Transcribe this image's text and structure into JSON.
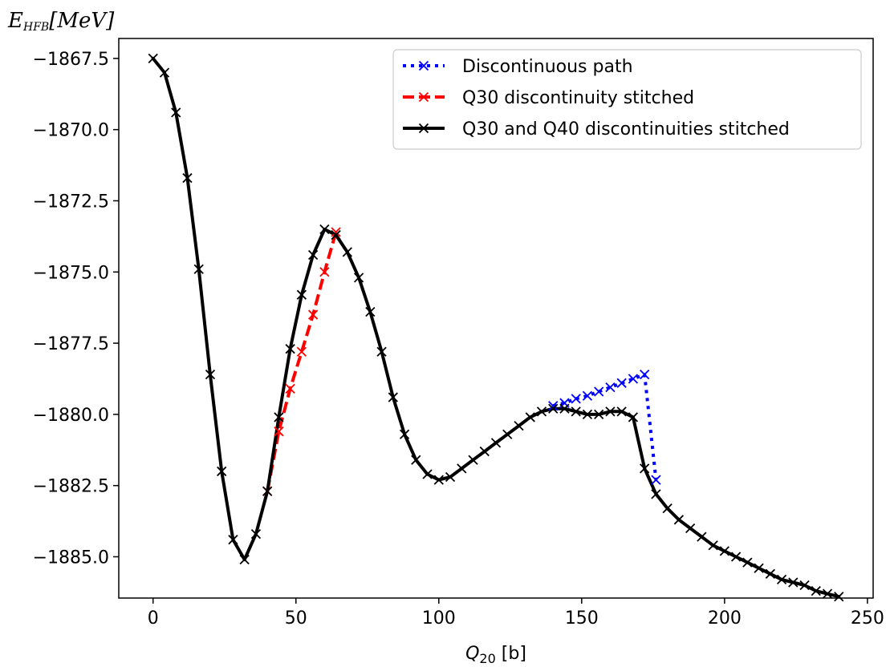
{
  "chart_data": {
    "type": "line",
    "title": "",
    "xlabel": "Q20 [b]",
    "ylabel": "EHFB[MeV]",
    "xlim": [
      -12,
      252
    ],
    "ylim": [
      -1886.45,
      -1866.8
    ],
    "xticks": [
      0,
      50,
      100,
      150,
      200,
      250
    ],
    "yticks": [
      -1867.5,
      -1870.0,
      -1872.5,
      -1875.0,
      -1877.5,
      -1880.0,
      -1882.5,
      -1885.0
    ],
    "xtick_labels": [
      "0",
      "50",
      "100",
      "150",
      "200",
      "250"
    ],
    "ytick_labels": [
      "−1867.5",
      "−1870.0",
      "−1872.5",
      "−1875.0",
      "−1877.5",
      "−1880.0",
      "−1882.5",
      "−1885.0"
    ],
    "grid": false,
    "legend_position": "top-right",
    "series": [
      {
        "name": "Discontinuous path",
        "color": "#0000ff",
        "linestyle": "dotted",
        "marker": "x",
        "points": [
          [
            140,
            -1879.7
          ],
          [
            144,
            -1879.6
          ],
          [
            148,
            -1879.45
          ],
          [
            152,
            -1879.35
          ],
          [
            156,
            -1879.2
          ],
          [
            160,
            -1879.05
          ],
          [
            164,
            -1878.9
          ],
          [
            168,
            -1878.75
          ],
          [
            172,
            -1878.6
          ],
          [
            176,
            -1882.3
          ]
        ]
      },
      {
        "name": "Q30 discontinuity stitched",
        "color": "#ff0000",
        "linestyle": "dashed",
        "marker": "x",
        "points": [
          [
            40,
            -1882.7
          ],
          [
            44,
            -1880.6
          ],
          [
            48,
            -1879.1
          ],
          [
            52,
            -1877.8
          ],
          [
            56,
            -1876.5
          ],
          [
            60,
            -1875.0
          ],
          [
            64,
            -1873.6
          ]
        ]
      },
      {
        "name": "Q30 and Q40 discontinuities stitched",
        "color": "#000000",
        "linestyle": "solid",
        "marker": "x",
        "points": [
          [
            0,
            -1867.5
          ],
          [
            4,
            -1868.0
          ],
          [
            8,
            -1869.4
          ],
          [
            12,
            -1871.7
          ],
          [
            16,
            -1874.9
          ],
          [
            20,
            -1878.6
          ],
          [
            24,
            -1882.0
          ],
          [
            28,
            -1884.4
          ],
          [
            32,
            -1885.1
          ],
          [
            36,
            -1884.2
          ],
          [
            40,
            -1882.7
          ],
          [
            44,
            -1880.1
          ],
          [
            48,
            -1877.7
          ],
          [
            52,
            -1875.8
          ],
          [
            56,
            -1874.4
          ],
          [
            60,
            -1873.5
          ],
          [
            64,
            -1873.7
          ],
          [
            68,
            -1874.3
          ],
          [
            72,
            -1875.2
          ],
          [
            76,
            -1876.4
          ],
          [
            80,
            -1877.8
          ],
          [
            84,
            -1879.4
          ],
          [
            88,
            -1880.7
          ],
          [
            92,
            -1881.6
          ],
          [
            96,
            -1882.1
          ],
          [
            100,
            -1882.3
          ],
          [
            104,
            -1882.2
          ],
          [
            108,
            -1881.9
          ],
          [
            112,
            -1881.6
          ],
          [
            116,
            -1881.3
          ],
          [
            120,
            -1881.0
          ],
          [
            124,
            -1880.7
          ],
          [
            128,
            -1880.4
          ],
          [
            132,
            -1880.1
          ],
          [
            136,
            -1879.9
          ],
          [
            140,
            -1879.8
          ],
          [
            144,
            -1879.8
          ],
          [
            148,
            -1879.9
          ],
          [
            152,
            -1880.0
          ],
          [
            156,
            -1880.0
          ],
          [
            160,
            -1879.9
          ],
          [
            164,
            -1879.9
          ],
          [
            168,
            -1880.1
          ],
          [
            172,
            -1881.9
          ],
          [
            176,
            -1882.8
          ],
          [
            180,
            -1883.3
          ],
          [
            184,
            -1883.7
          ],
          [
            188,
            -1884.0
          ],
          [
            192,
            -1884.3
          ],
          [
            196,
            -1884.6
          ],
          [
            200,
            -1884.8
          ],
          [
            204,
            -1885.0
          ],
          [
            208,
            -1885.2
          ],
          [
            212,
            -1885.4
          ],
          [
            216,
            -1885.6
          ],
          [
            220,
            -1885.8
          ],
          [
            224,
            -1885.9
          ],
          [
            228,
            -1886.0
          ],
          [
            232,
            -1886.2
          ],
          [
            236,
            -1886.3
          ],
          [
            240,
            -1886.4
          ]
        ]
      }
    ]
  }
}
